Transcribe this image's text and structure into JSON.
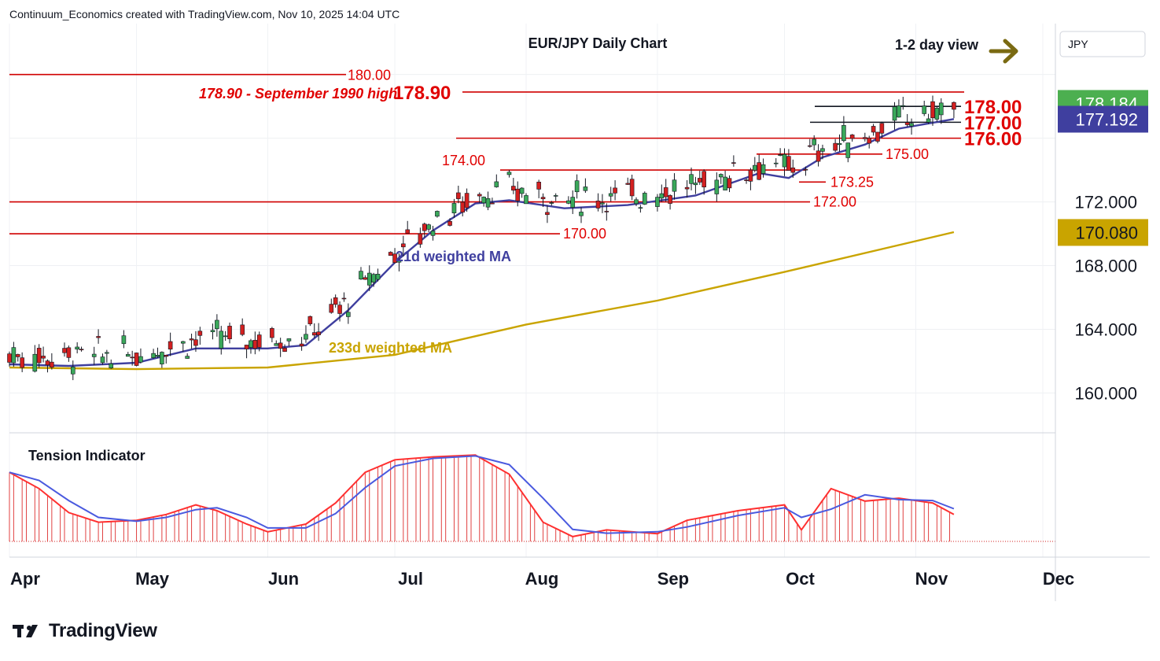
{
  "header": {
    "text": "Continuum_Economics created with TradingView.com, Nov 10, 2025 14:04 UTC"
  },
  "brand": {
    "name": "TradingView"
  },
  "chart_data": {
    "type": "candlestick",
    "title": "EUR/JPY Daily Chart",
    "currency": "JPY",
    "view_label": "1-2 day view",
    "view_direction": "right",
    "price_axis": {
      "ylim": [
        157.6,
        182.8
      ],
      "ticks": [
        "160.000",
        "164.000",
        "168.000",
        "172.000"
      ]
    },
    "x_axis": {
      "labels": [
        "Apr",
        "May",
        "Jun",
        "Jul",
        "Aug",
        "Sep",
        "Oct",
        "Nov",
        "Dec"
      ]
    },
    "last_price": {
      "value": "178.184",
      "color": "#4caf50"
    },
    "ma21_value": {
      "value": "177.192",
      "color": "#3f3f9f"
    },
    "ma233_value": {
      "value": "170.080",
      "color": "#c9a400"
    },
    "levels": [
      {
        "value": 180.0,
        "label": "180.00"
      },
      {
        "value": 178.9,
        "label": "178.90"
      },
      {
        "value": 178.0,
        "label": "178.00"
      },
      {
        "value": 177.0,
        "label": "177.00"
      },
      {
        "value": 176.0,
        "label": "176.00"
      },
      {
        "value": 175.0,
        "label": "175.00"
      },
      {
        "value": 174.0,
        "label": "174.00"
      },
      {
        "value": 173.25,
        "label": "173.25"
      },
      {
        "value": 172.0,
        "label": "172.00"
      },
      {
        "value": 170.0,
        "label": "170.00"
      }
    ],
    "annotation": "178.90 - September 1990 high",
    "ma21_label": "21d weighted MA",
    "ma233_label": "233d weighted MA",
    "indicator_label": "Tension Indicator",
    "ma21_series": [
      [
        "2025-04-01",
        161.8
      ],
      [
        "2025-04-15",
        161.7
      ],
      [
        "2025-05-01",
        161.9
      ],
      [
        "2025-05-15",
        162.8
      ],
      [
        "2025-06-01",
        162.8
      ],
      [
        "2025-06-10",
        163.0
      ],
      [
        "2025-06-20",
        165.2
      ],
      [
        "2025-07-01",
        168.2
      ],
      [
        "2025-07-10",
        170.2
      ],
      [
        "2025-07-20",
        171.9
      ],
      [
        "2025-07-28",
        172.1
      ],
      [
        "2025-08-10",
        171.6
      ],
      [
        "2025-08-25",
        171.8
      ],
      [
        "2025-09-10",
        172.4
      ],
      [
        "2025-09-25",
        173.8
      ],
      [
        "2025-10-02",
        173.5
      ],
      [
        "2025-10-10",
        174.8
      ],
      [
        "2025-10-20",
        175.6
      ],
      [
        "2025-10-28",
        176.6
      ],
      [
        "2025-11-10",
        177.2
      ]
    ],
    "ma233_series": [
      [
        "2025-04-01",
        161.6
      ],
      [
        "2025-05-01",
        161.5
      ],
      [
        "2025-06-01",
        161.6
      ],
      [
        "2025-07-01",
        162.4
      ],
      [
        "2025-08-01",
        164.3
      ],
      [
        "2025-09-01",
        165.8
      ],
      [
        "2025-10-01",
        167.6
      ],
      [
        "2025-11-10",
        170.1
      ]
    ],
    "tension_series": [
      [
        "2025-04-01",
        72
      ],
      [
        "2025-04-08",
        55
      ],
      [
        "2025-04-15",
        30
      ],
      [
        "2025-04-22",
        20
      ],
      [
        "2025-05-01",
        22
      ],
      [
        "2025-05-08",
        28
      ],
      [
        "2025-05-15",
        38
      ],
      [
        "2025-05-20",
        32
      ],
      [
        "2025-05-27",
        18
      ],
      [
        "2025-06-01",
        10
      ],
      [
        "2025-06-10",
        18
      ],
      [
        "2025-06-17",
        40
      ],
      [
        "2025-06-24",
        72
      ],
      [
        "2025-07-01",
        85
      ],
      [
        "2025-07-10",
        88
      ],
      [
        "2025-07-20",
        90
      ],
      [
        "2025-07-28",
        70
      ],
      [
        "2025-08-05",
        20
      ],
      [
        "2025-08-12",
        5
      ],
      [
        "2025-08-20",
        12
      ],
      [
        "2025-09-01",
        8
      ],
      [
        "2025-09-08",
        22
      ],
      [
        "2025-09-20",
        32
      ],
      [
        "2025-10-01",
        38
      ],
      [
        "2025-10-05",
        12
      ],
      [
        "2025-10-12",
        55
      ],
      [
        "2025-10-20",
        42
      ],
      [
        "2025-10-28",
        45
      ],
      [
        "2025-11-05",
        40
      ],
      [
        "2025-11-10",
        28
      ]
    ]
  }
}
